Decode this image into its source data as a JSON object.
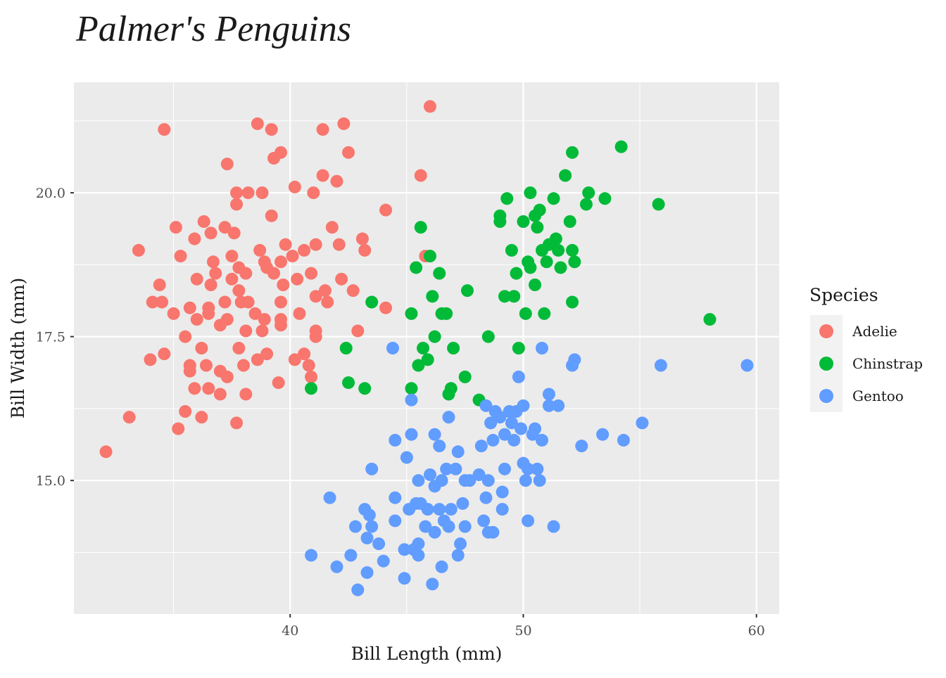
{
  "chart_data": {
    "type": "scatter",
    "title": "Palmer's Penguins",
    "x_label": "Bill Length (mm)",
    "y_label": "Bill Width (mm)",
    "legend_title": "Species",
    "xlim": [
      30.725,
      60.975
    ],
    "ylim": [
      12.68,
      21.92
    ],
    "xticks": [
      40,
      50,
      60
    ],
    "yticks": [
      {
        "value": 15,
        "label": "15.0"
      },
      {
        "value": 17.5,
        "label": "17.5"
      },
      {
        "value": 20,
        "label": "20.0"
      }
    ],
    "minor_xticks": [
      35,
      45,
      55
    ],
    "minor_yticks": [
      13.75,
      16.25,
      18.75,
      21.25
    ],
    "grid": true,
    "legend": "right",
    "series": [
      {
        "name": "Adelie",
        "color": "#F8766D",
        "x": [
          32.1,
          33.1,
          33.5,
          34.0,
          34.1,
          34.4,
          34.5,
          34.6,
          34.6,
          35.0,
          35.1,
          35.2,
          35.3,
          35.5,
          35.5,
          35.7,
          35.7,
          35.7,
          35.9,
          35.9,
          36.0,
          36.0,
          36.2,
          36.2,
          36.3,
          36.4,
          36.5,
          36.5,
          36.5,
          36.6,
          36.6,
          36.7,
          36.8,
          37.0,
          37.0,
          37.0,
          37.2,
          37.2,
          37.3,
          37.3,
          37.3,
          37.5,
          37.5,
          37.6,
          37.7,
          37.7,
          37.7,
          37.8,
          37.8,
          37.8,
          37.9,
          38.0,
          38.1,
          38.1,
          38.1,
          38.2,
          38.2,
          38.5,
          38.6,
          38.6,
          38.7,
          38.8,
          38.8,
          38.9,
          38.9,
          39.0,
          39.0,
          39.2,
          39.2,
          39.3,
          39.3,
          39.5,
          39.6,
          39.6,
          39.6,
          39.6,
          39.6,
          39.7,
          39.8,
          40.1,
          40.2,
          40.2,
          40.3,
          40.4,
          40.6,
          40.6,
          40.8,
          40.9,
          40.9,
          41.0,
          41.1,
          41.1,
          41.1,
          41.1,
          41.4,
          41.4,
          41.5,
          41.6,
          41.8,
          42.0,
          42.1,
          42.2,
          42.3,
          42.5,
          42.7,
          42.9,
          43.1,
          43.2,
          44.1,
          44.1,
          45.6,
          45.8,
          46.0
        ],
        "y": [
          15.5,
          16.1,
          19.0,
          17.1,
          18.1,
          18.4,
          18.1,
          21.1,
          17.2,
          17.9,
          19.4,
          15.9,
          18.9,
          16.2,
          17.5,
          17.0,
          16.9,
          18.0,
          19.2,
          16.6,
          18.5,
          17.8,
          17.3,
          16.1,
          19.5,
          17.0,
          17.9,
          16.6,
          18.0,
          18.4,
          19.3,
          18.8,
          18.6,
          17.7,
          16.5,
          16.9,
          19.4,
          18.1,
          20.5,
          17.8,
          16.8,
          18.9,
          18.5,
          19.3,
          16.0,
          19.8,
          20.0,
          18.7,
          17.3,
          18.3,
          18.1,
          17.0,
          18.6,
          17.6,
          16.5,
          20.0,
          18.1,
          17.9,
          21.2,
          17.1,
          19.0,
          17.6,
          20.0,
          18.8,
          17.8,
          18.7,
          17.2,
          21.1,
          19.6,
          18.6,
          20.6,
          16.7,
          18.8,
          18.1,
          20.7,
          17.8,
          17.7,
          18.4,
          19.1,
          18.9,
          20.1,
          17.1,
          18.5,
          17.9,
          17.2,
          19.0,
          17.0,
          16.8,
          18.6,
          20.0,
          17.5,
          19.1,
          18.2,
          17.6,
          21.1,
          20.3,
          18.3,
          18.1,
          19.4,
          20.2,
          19.1,
          18.5,
          21.2,
          20.7,
          18.3,
          17.6,
          19.2,
          19.0,
          19.7,
          18.0,
          20.3,
          18.9,
          21.5
        ]
      },
      {
        "name": "Chinstrap",
        "color": "#00BA38",
        "x": [
          40.9,
          42.4,
          42.5,
          43.2,
          43.5,
          45.2,
          45.2,
          45.4,
          45.5,
          45.6,
          45.7,
          45.9,
          46.0,
          46.1,
          46.2,
          46.4,
          46.5,
          46.7,
          46.8,
          46.9,
          47.0,
          47.5,
          47.6,
          48.1,
          48.5,
          49.0,
          49.0,
          49.2,
          49.3,
          49.5,
          49.6,
          49.7,
          49.8,
          50.0,
          50.1,
          50.2,
          50.3,
          50.3,
          50.5,
          50.6,
          50.7,
          50.5,
          50.8,
          50.9,
          51.0,
          51.1,
          51.3,
          51.4,
          51.5,
          51.6,
          51.8,
          52.0,
          52.1,
          52.1,
          52.1,
          52.2,
          52.7,
          52.8,
          53.5,
          54.2,
          55.8,
          58.0
        ],
        "y": [
          16.6,
          17.3,
          16.7,
          16.6,
          18.1,
          17.9,
          16.6,
          18.7,
          17.0,
          19.4,
          17.3,
          17.1,
          18.9,
          18.2,
          17.5,
          18.6,
          17.9,
          17.9,
          16.5,
          16.6,
          17.3,
          16.8,
          18.3,
          16.4,
          17.5,
          19.5,
          19.6,
          18.2,
          19.9,
          19.0,
          18.2,
          18.6,
          17.3,
          19.5,
          17.9,
          18.8,
          18.7,
          20.0,
          19.6,
          19.4,
          19.7,
          18.4,
          19.0,
          17.9,
          18.8,
          19.1,
          19.9,
          19.2,
          19.0,
          18.7,
          20.3,
          19.5,
          20.7,
          19.0,
          18.1,
          18.8,
          19.8,
          20.0,
          19.9,
          20.8,
          19.8,
          17.8
        ]
      },
      {
        "name": "Gentoo",
        "color": "#619CFF",
        "x": [
          40.9,
          41.7,
          42.0,
          42.6,
          42.8,
          42.9,
          43.2,
          43.3,
          43.3,
          43.4,
          43.5,
          43.5,
          43.8,
          44.0,
          44.4,
          44.5,
          44.5,
          44.5,
          44.9,
          44.9,
          45.0,
          45.1,
          45.2,
          45.2,
          45.3,
          45.4,
          45.5,
          45.5,
          45.5,
          45.6,
          45.8,
          45.9,
          46.0,
          46.1,
          46.2,
          46.2,
          46.2,
          46.4,
          46.4,
          46.5,
          46.5,
          46.6,
          46.7,
          46.8,
          46.8,
          46.9,
          47.1,
          47.2,
          47.2,
          47.3,
          47.4,
          47.5,
          47.5,
          47.7,
          48.1,
          48.2,
          48.3,
          48.4,
          48.4,
          48.5,
          48.5,
          48.6,
          48.7,
          48.7,
          48.8,
          49.0,
          49.1,
          49.1,
          49.2,
          49.2,
          49.4,
          49.5,
          49.6,
          49.7,
          49.8,
          49.9,
          50.0,
          50.0,
          50.1,
          50.2,
          50.2,
          50.4,
          50.5,
          50.6,
          50.7,
          50.8,
          50.8,
          51.1,
          51.1,
          51.3,
          51.5,
          52.1,
          52.2,
          52.5,
          53.4,
          54.3,
          55.1,
          55.9,
          59.6
        ],
        "y": [
          13.7,
          14.7,
          13.5,
          13.7,
          14.2,
          13.1,
          14.5,
          14.0,
          13.4,
          14.4,
          15.2,
          14.2,
          13.9,
          13.6,
          17.3,
          15.7,
          14.3,
          14.7,
          13.3,
          13.8,
          15.4,
          14.5,
          16.4,
          15.8,
          13.8,
          14.6,
          15.0,
          13.9,
          13.7,
          14.6,
          14.2,
          14.5,
          15.1,
          13.2,
          14.1,
          15.8,
          14.9,
          15.6,
          14.5,
          13.5,
          15.0,
          14.3,
          15.2,
          16.1,
          14.2,
          14.5,
          15.2,
          15.5,
          13.7,
          13.9,
          14.6,
          15.0,
          14.2,
          15.0,
          15.1,
          15.6,
          14.3,
          14.7,
          16.3,
          15.0,
          14.1,
          16.0,
          14.1,
          15.7,
          16.2,
          16.1,
          14.8,
          14.5,
          15.8,
          15.2,
          16.2,
          16.0,
          15.7,
          16.2,
          16.8,
          15.9,
          15.3,
          16.3,
          15.0,
          14.3,
          15.2,
          15.8,
          15.9,
          15.2,
          15.0,
          17.3,
          15.7,
          16.5,
          16.3,
          14.2,
          16.3,
          17.0,
          17.1,
          15.6,
          15.8,
          15.7,
          16.0,
          17.0,
          17.0
        ]
      }
    ]
  }
}
